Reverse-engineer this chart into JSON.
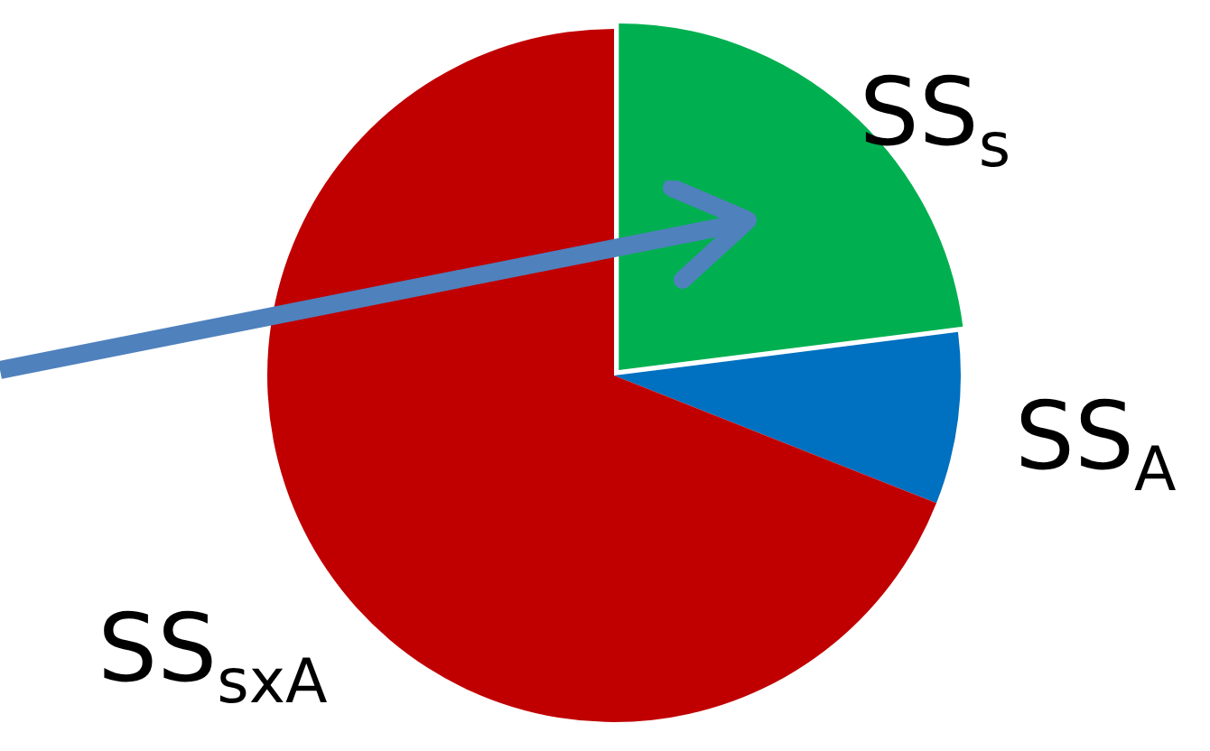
{
  "chart_data": {
    "type": "pie",
    "categories": [
      "SS$_{s}$",
      "SS$_{A}$",
      "SS$_{sxA}$"
    ],
    "values": [
      23,
      8,
      69
    ],
    "colors": [
      "#00b050",
      "#0070c0",
      "#c00000"
    ],
    "legend": false
  }
}
